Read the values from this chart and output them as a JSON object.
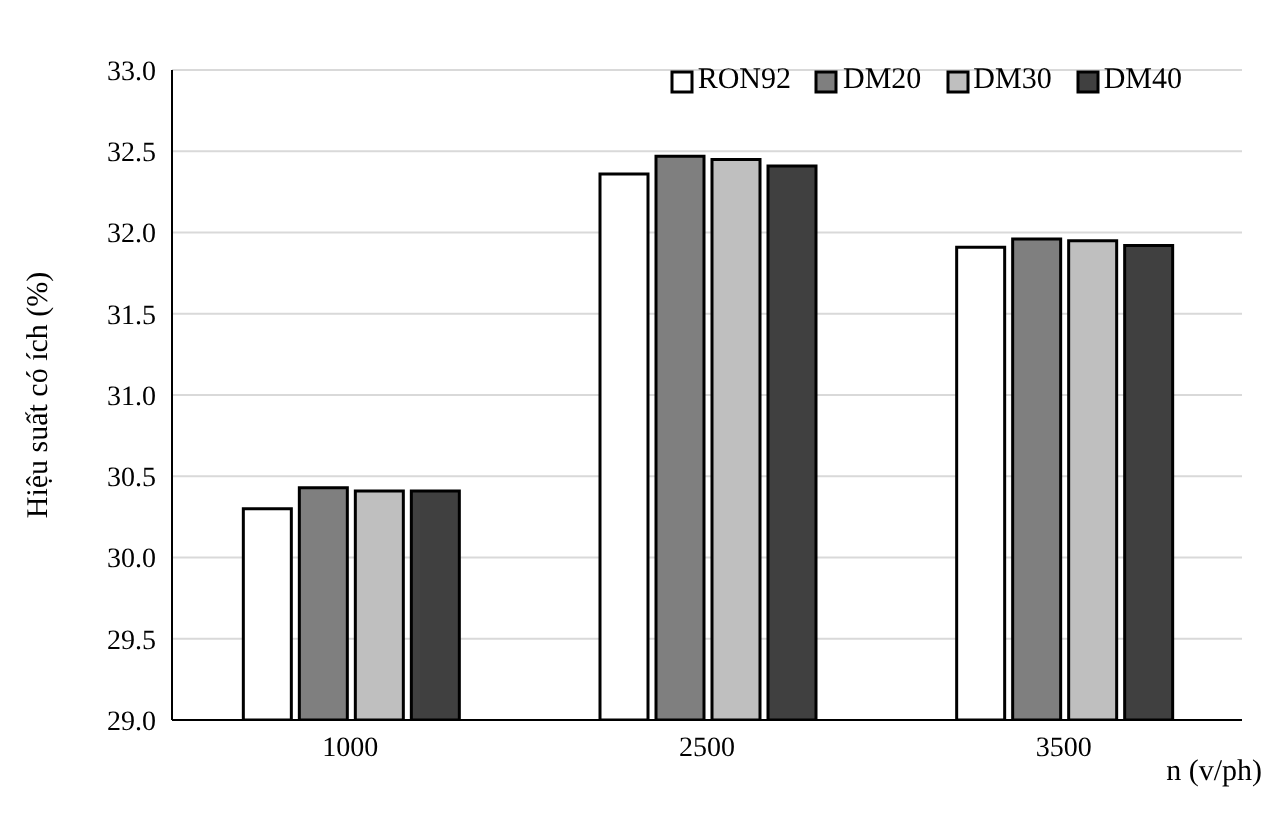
{
  "chart_data": {
    "type": "bar",
    "xlabel": "n (v/ph)",
    "ylabel": "Hiệu suất có ích (%)",
    "categories": [
      "1000",
      "2500",
      "3500"
    ],
    "series": [
      {
        "name": "RON92",
        "color": "#ffffff",
        "values": [
          30.3,
          32.36,
          31.91
        ]
      },
      {
        "name": "DM20",
        "color": "#7f7f7f",
        "values": [
          30.43,
          32.47,
          31.96
        ]
      },
      {
        "name": "DM30",
        "color": "#bfbfbf",
        "values": [
          30.41,
          32.45,
          31.95
        ]
      },
      {
        "name": "DM40",
        "color": "#404040",
        "values": [
          30.41,
          32.41,
          31.92
        ]
      }
    ],
    "ylim": [
      29.0,
      33.0
    ],
    "yticks": [
      {
        "value": 29,
        "label": "29.0"
      },
      {
        "value": 29.5,
        "label": "29.5"
      },
      {
        "value": 30,
        "label": "30.0"
      },
      {
        "value": 30.5,
        "label": "30.5"
      },
      {
        "value": 31,
        "label": "31.0"
      },
      {
        "value": 31.5,
        "label": "31.5"
      },
      {
        "value": 32,
        "label": "32.0"
      },
      {
        "value": 32.5,
        "label": "32.5"
      },
      {
        "value": 33,
        "label": "33.0"
      }
    ],
    "grid": "y",
    "legend": "top right"
  }
}
